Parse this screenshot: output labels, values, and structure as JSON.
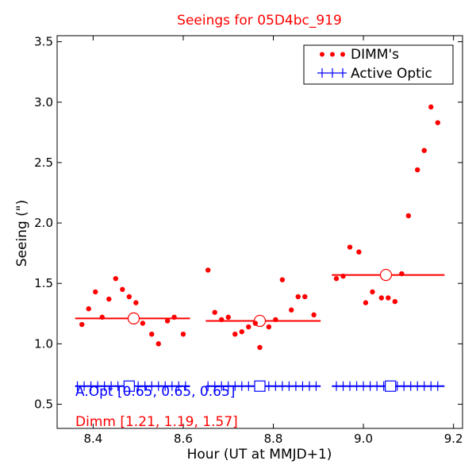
{
  "chart_data": {
    "type": "scatter",
    "title": "Seeings for 05D4bc_919",
    "xlabel": "Hour (UT at MMJD+1)",
    "ylabel": "Seeing (\")",
    "xlim": [
      8.32,
      9.22
    ],
    "ylim": [
      0.3,
      3.55
    ],
    "x_ticks": [
      8.4,
      8.6,
      8.8,
      9.0,
      9.2
    ],
    "x_tick_labels": [
      "8.4",
      "8.6",
      "8.8",
      "9.0",
      "9.2"
    ],
    "y_ticks": [
      0.5,
      1.0,
      1.5,
      2.0,
      2.5,
      3.0,
      3.5
    ],
    "y_tick_labels": [
      "0.5",
      "1.0",
      "1.5",
      "2.0",
      "2.5",
      "3.0",
      "3.5"
    ],
    "grid": false,
    "legend_position": "top-right",
    "colors": {
      "dimm": "#ff0000",
      "active_optic": "#0000ff"
    },
    "legend": [
      "DIMM's",
      "Active Optic"
    ],
    "dimm_points": [
      {
        "x": 8.375,
        "y": 1.16
      },
      {
        "x": 8.39,
        "y": 1.29
      },
      {
        "x": 8.405,
        "y": 1.43
      },
      {
        "x": 8.42,
        "y": 1.22
      },
      {
        "x": 8.435,
        "y": 1.37
      },
      {
        "x": 8.45,
        "y": 1.54
      },
      {
        "x": 8.465,
        "y": 1.45
      },
      {
        "x": 8.48,
        "y": 1.39
      },
      {
        "x": 8.495,
        "y": 1.34
      },
      {
        "x": 8.51,
        "y": 1.17
      },
      {
        "x": 8.53,
        "y": 1.08
      },
      {
        "x": 8.545,
        "y": 1.0
      },
      {
        "x": 8.565,
        "y": 1.19
      },
      {
        "x": 8.58,
        "y": 1.22
      },
      {
        "x": 8.6,
        "y": 1.08
      },
      {
        "x": 8.655,
        "y": 1.61
      },
      {
        "x": 8.67,
        "y": 1.26
      },
      {
        "x": 8.685,
        "y": 1.2
      },
      {
        "x": 8.7,
        "y": 1.22
      },
      {
        "x": 8.715,
        "y": 1.08
      },
      {
        "x": 8.73,
        "y": 1.1
      },
      {
        "x": 8.745,
        "y": 1.14
      },
      {
        "x": 8.76,
        "y": 1.17
      },
      {
        "x": 8.77,
        "y": 0.97
      },
      {
        "x": 8.79,
        "y": 1.14
      },
      {
        "x": 8.805,
        "y": 1.2
      },
      {
        "x": 8.82,
        "y": 1.53
      },
      {
        "x": 8.84,
        "y": 1.28
      },
      {
        "x": 8.855,
        "y": 1.39
      },
      {
        "x": 8.87,
        "y": 1.39
      },
      {
        "x": 8.89,
        "y": 1.24
      },
      {
        "x": 8.94,
        "y": 1.54
      },
      {
        "x": 8.955,
        "y": 1.56
      },
      {
        "x": 8.97,
        "y": 1.8
      },
      {
        "x": 8.99,
        "y": 1.76
      },
      {
        "x": 9.005,
        "y": 1.34
      },
      {
        "x": 9.02,
        "y": 1.43
      },
      {
        "x": 9.04,
        "y": 1.38
      },
      {
        "x": 9.055,
        "y": 1.38
      },
      {
        "x": 9.07,
        "y": 1.35
      },
      {
        "x": 9.085,
        "y": 1.58
      },
      {
        "x": 9.1,
        "y": 2.06
      },
      {
        "x": 9.12,
        "y": 2.44
      },
      {
        "x": 9.135,
        "y": 2.6
      },
      {
        "x": 9.15,
        "y": 2.96
      },
      {
        "x": 9.165,
        "y": 2.83
      }
    ],
    "dimm_medians": [
      {
        "x_start": 8.36,
        "x_end": 8.615,
        "x_mid": 8.49,
        "y": 1.21
      },
      {
        "x_start": 8.65,
        "x_end": 8.905,
        "x_mid": 8.77,
        "y": 1.19
      },
      {
        "x_start": 8.93,
        "x_end": 9.18,
        "x_mid": 9.05,
        "y": 1.57
      }
    ],
    "active_optic": [
      {
        "x_start": 8.36,
        "x_end": 8.615,
        "x_mid": 8.48,
        "y": 0.65,
        "x": [
          8.365,
          8.38,
          8.395,
          8.41,
          8.425,
          8.44,
          8.455,
          8.47,
          8.485,
          8.5,
          8.515,
          8.53,
          8.545,
          8.56,
          8.575,
          8.59,
          8.605
        ]
      },
      {
        "x_start": 8.65,
        "x_end": 8.905,
        "x_mid": 8.77,
        "y": 0.65,
        "x": [
          8.655,
          8.67,
          8.685,
          8.7,
          8.715,
          8.73,
          8.745,
          8.76,
          8.775,
          8.79,
          8.805,
          8.82,
          8.835,
          8.85,
          8.865,
          8.88,
          8.895
        ]
      },
      {
        "x_start": 8.93,
        "x_end": 9.18,
        "x_mid": 9.06,
        "y": 0.65,
        "x": [
          8.94,
          8.955,
          8.97,
          8.985,
          9.0,
          9.015,
          9.03,
          9.045,
          9.06,
          9.075,
          9.09,
          9.105,
          9.12,
          9.135,
          9.15,
          9.165
        ]
      }
    ],
    "annotations": {
      "aopt": "A.Opt [0.65, 0.65, 0.65]",
      "dimm": "Dimm [1.21, 1.19, 1.57]"
    }
  }
}
